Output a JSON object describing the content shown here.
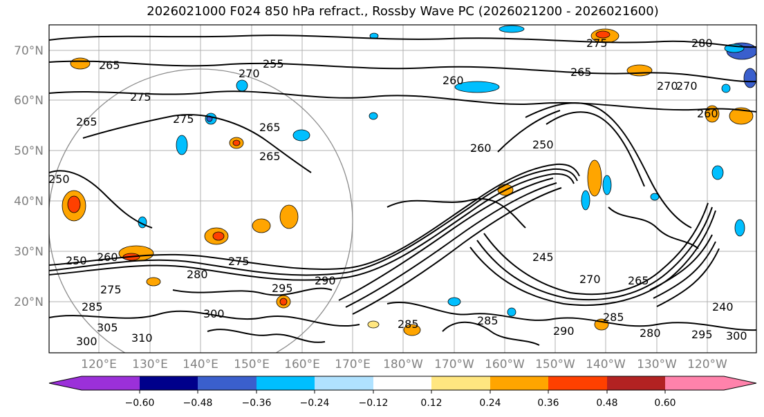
{
  "title": "2026021000 F024 850 hPa refract., Rossby Wave PC (2026021200 - 2026021600)",
  "latitude_labels": [
    "70°N",
    "60°N",
    "50°N",
    "40°N",
    "30°N",
    "20°N"
  ],
  "longitude_labels": [
    "120°E",
    "130°E",
    "140°E",
    "150°E",
    "160°E",
    "170°E",
    "180°W",
    "170°W",
    "160°W",
    "150°W",
    "140°W",
    "130°W",
    "120°W"
  ],
  "colorbar": {
    "tick_labels": [
      "−0.60",
      "−0.48",
      "−0.36",
      "−0.24",
      "−0.12",
      "0.12",
      "0.24",
      "0.36",
      "0.48",
      "0.60"
    ],
    "colors": [
      "#9b30d9",
      "#00008b",
      "#3a5fcd",
      "#00bfff",
      "#b0e2ff",
      "#ffffff",
      "#ffe680",
      "#ffa500",
      "#ff4000",
      "#b22222",
      "#ff82ab"
    ]
  },
  "contour_labels": [
    "265",
    "270",
    "255",
    "260",
    "270",
    "275",
    "265",
    "265",
    "275",
    "265",
    "260",
    "250",
    "265",
    "270",
    "260",
    "280",
    "275",
    "275",
    "260",
    "280",
    "290",
    "295",
    "285",
    "245",
    "270",
    "285",
    "265",
    "250",
    "300",
    "310",
    "285",
    "285",
    "290",
    "280",
    "295",
    "300",
    "240",
    "305",
    "300",
    "275",
    "250"
  ]
}
